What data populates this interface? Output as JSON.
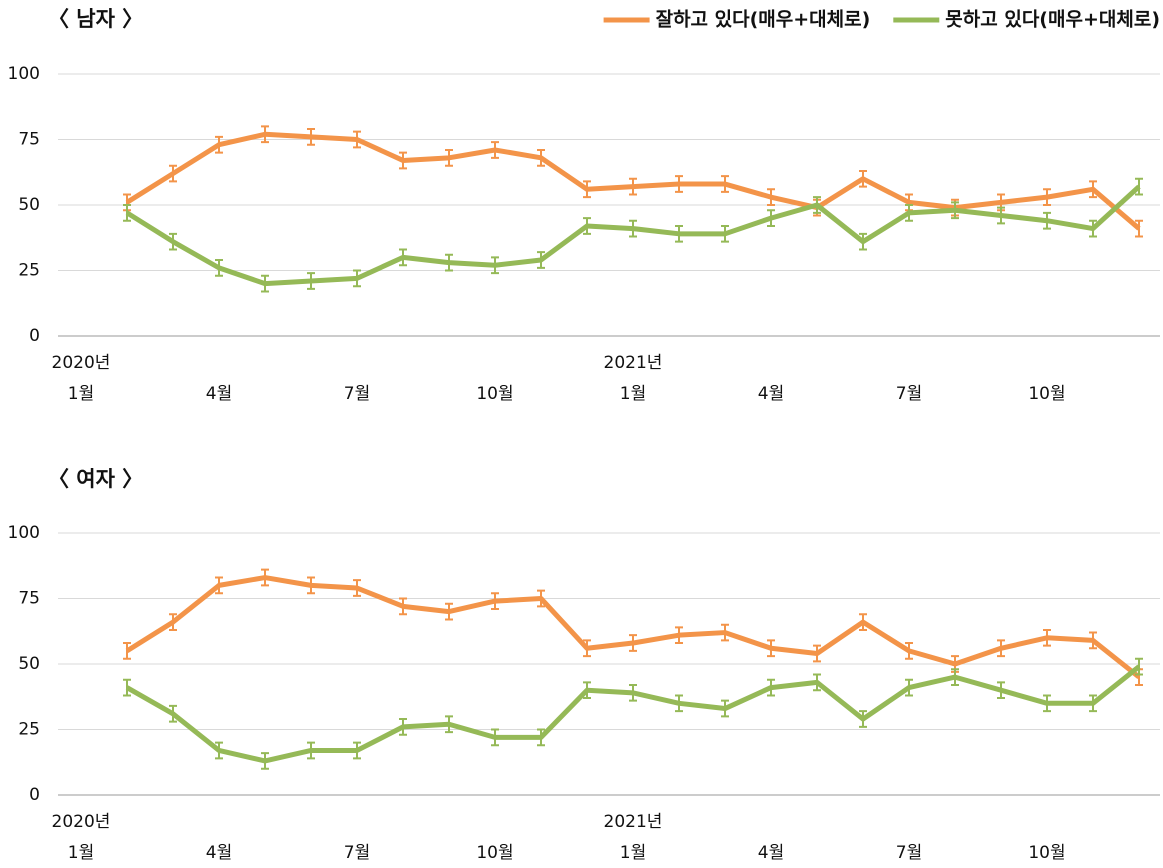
{
  "chart_data": [
    {
      "type": "line",
      "title": "〈 남자 〉",
      "legend": "top-right",
      "grid": true,
      "year_labels": [
        "2020년",
        "2021년"
      ],
      "categories": [
        "1월",
        null,
        null,
        "4월",
        null,
        null,
        "7월",
        null,
        null,
        "10월",
        null,
        null,
        "1월",
        null,
        null,
        "4월",
        null,
        null,
        "7월",
        null,
        null,
        "10월",
        null,
        null
      ],
      "ylim": [
        0,
        100
      ],
      "yticks": [
        0,
        25,
        50,
        75,
        100
      ],
      "series": [
        {
          "name": "잘하고 있다(매우+대체로)",
          "color": "#f39449",
          "error": 3,
          "values": [
            null,
            51,
            62,
            73,
            77,
            76,
            75,
            67,
            68,
            71,
            68,
            56,
            57,
            58,
            58,
            53,
            49,
            60,
            51,
            49,
            51,
            53,
            56,
            41
          ]
        },
        {
          "name": "못하고 있다(매우+대체로)",
          "color": "#95b957",
          "error": 3,
          "values": [
            null,
            47,
            36,
            26,
            20,
            21,
            22,
            30,
            28,
            27,
            29,
            42,
            41,
            39,
            39,
            45,
            50,
            36,
            47,
            48,
            46,
            44,
            41,
            57
          ]
        }
      ]
    },
    {
      "type": "line",
      "title": "〈 여자 〉",
      "grid": true,
      "year_labels": [
        "2020년",
        "2021년"
      ],
      "categories": [
        "1월",
        null,
        null,
        "4월",
        null,
        null,
        "7월",
        null,
        null,
        "10월",
        null,
        null,
        "1월",
        null,
        null,
        "4월",
        null,
        null,
        "7월",
        null,
        null,
        "10월",
        null,
        null
      ],
      "ylim": [
        0,
        100
      ],
      "yticks": [
        0,
        25,
        50,
        75,
        100
      ],
      "series": [
        {
          "color": "#f39449",
          "error": 3,
          "values": [
            null,
            55,
            66,
            80,
            83,
            80,
            79,
            72,
            70,
            74,
            75,
            56,
            58,
            61,
            62,
            56,
            54,
            66,
            55,
            50,
            56,
            60,
            59,
            45
          ]
        },
        {
          "color": "#95b957",
          "error": 3,
          "values": [
            null,
            41,
            31,
            17,
            13,
            17,
            17,
            26,
            27,
            22,
            22,
            40,
            39,
            35,
            33,
            41,
            43,
            29,
            41,
            45,
            40,
            35,
            35,
            49
          ]
        }
      ]
    }
  ]
}
